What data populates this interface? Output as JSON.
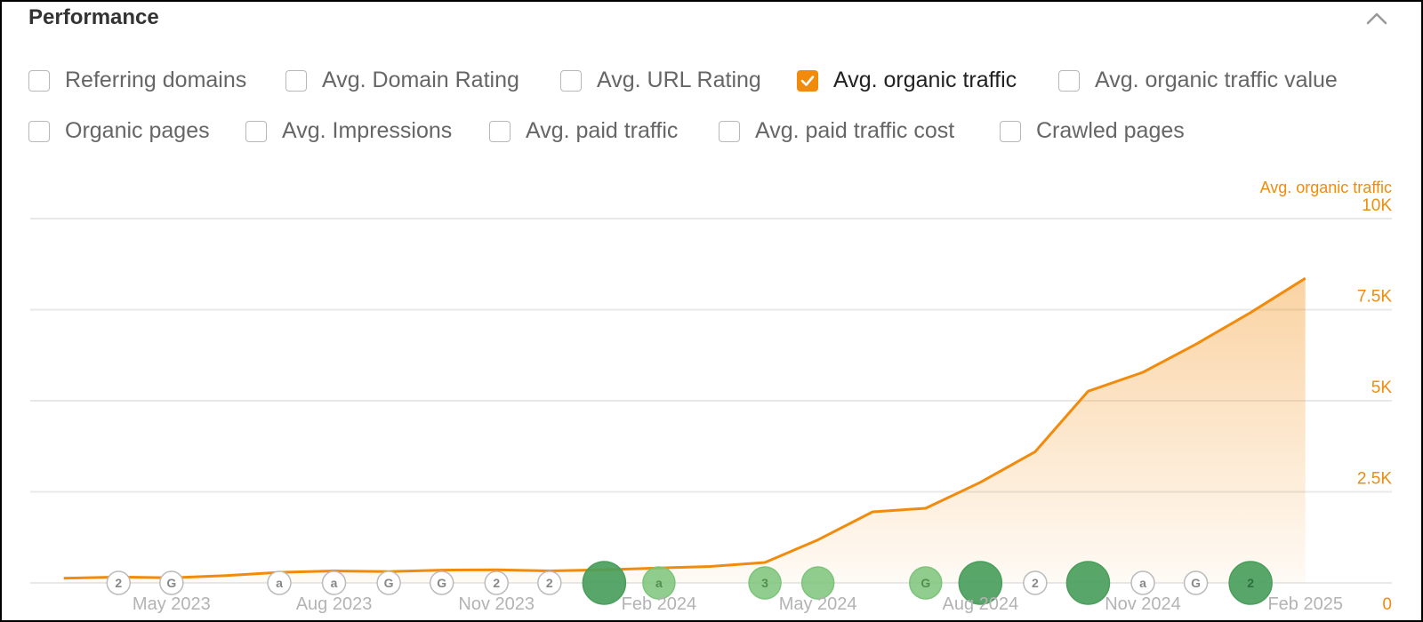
{
  "header": {
    "title": "Performance"
  },
  "metrics_row1": [
    {
      "label": "Referring domains",
      "checked": false
    },
    {
      "label": "Avg. Domain Rating",
      "checked": false
    },
    {
      "label": "Avg. URL Rating",
      "checked": false
    },
    {
      "label": "Avg. organic traffic",
      "checked": true
    },
    {
      "label": "Avg. organic traffic value",
      "checked": false
    }
  ],
  "metrics_row2": [
    {
      "label": "Organic pages",
      "checked": false
    },
    {
      "label": "Avg. Impressions",
      "checked": false
    },
    {
      "label": "Avg. paid traffic",
      "checked": false
    },
    {
      "label": "Avg. paid traffic cost",
      "checked": false
    },
    {
      "label": "Crawled pages",
      "checked": false
    }
  ],
  "colors": {
    "accent": "#f28b0c",
    "annotation_green": "#4a9e5c",
    "annotation_light_green": "#7cc47a",
    "grid": "#e8e8e8"
  },
  "chart_data": {
    "type": "area",
    "ylabel": "Avg. organic traffic",
    "ylim": [
      0,
      10000
    ],
    "yticks": [
      {
        "value": 10000,
        "label": "10K"
      },
      {
        "value": 7500,
        "label": "7.5K"
      },
      {
        "value": 5000,
        "label": "5K"
      },
      {
        "value": 2500,
        "label": "2.5K"
      },
      {
        "value": 0,
        "label": "0"
      }
    ],
    "xlim": [
      "2023-02-10",
      "2025-03-22"
    ],
    "xticks": [
      {
        "date": "2023-05-01",
        "label": "May 2023"
      },
      {
        "date": "2023-08-01",
        "label": "Aug 2023"
      },
      {
        "date": "2023-11-01",
        "label": "Nov 2023"
      },
      {
        "date": "2024-02-01",
        "label": "Feb 2024"
      },
      {
        "date": "2024-05-01",
        "label": "May 2024"
      },
      {
        "date": "2024-08-01",
        "label": "Aug 2024"
      },
      {
        "date": "2024-11-01",
        "label": "Nov 2024"
      },
      {
        "date": "2025-02-01",
        "label": "Feb 2025"
      }
    ],
    "grid": true,
    "series": [
      {
        "color": "#f28b0c",
        "points": [
          {
            "x": "2023-03-01",
            "y": 130
          },
          {
            "x": "2023-04-01",
            "y": 160
          },
          {
            "x": "2023-05-01",
            "y": 140
          },
          {
            "x": "2023-06-01",
            "y": 200
          },
          {
            "x": "2023-07-01",
            "y": 290
          },
          {
            "x": "2023-08-01",
            "y": 330
          },
          {
            "x": "2023-09-01",
            "y": 310
          },
          {
            "x": "2023-10-01",
            "y": 350
          },
          {
            "x": "2023-11-01",
            "y": 360
          },
          {
            "x": "2023-12-01",
            "y": 330
          },
          {
            "x": "2024-01-01",
            "y": 360
          },
          {
            "x": "2024-02-01",
            "y": 410
          },
          {
            "x": "2024-03-01",
            "y": 450
          },
          {
            "x": "2024-04-01",
            "y": 560
          },
          {
            "x": "2024-05-01",
            "y": 1180
          },
          {
            "x": "2024-06-01",
            "y": 1950
          },
          {
            "x": "2024-07-01",
            "y": 2050
          },
          {
            "x": "2024-08-01",
            "y": 2760
          },
          {
            "x": "2024-09-01",
            "y": 3600
          },
          {
            "x": "2024-10-01",
            "y": 5260
          },
          {
            "x": "2024-11-01",
            "y": 5780
          },
          {
            "x": "2024-12-01",
            "y": 6550
          },
          {
            "x": "2025-01-01",
            "y": 7420
          },
          {
            "x": "2025-02-01",
            "y": 8360
          }
        ]
      }
    ],
    "annotations": [
      {
        "date": "2023-04-01",
        "label": "2",
        "kind": "outline",
        "size": "s"
      },
      {
        "date": "2023-05-01",
        "label": "G",
        "kind": "outline",
        "size": "s"
      },
      {
        "date": "2023-07-01",
        "label": "a",
        "kind": "outline",
        "size": "s"
      },
      {
        "date": "2023-08-01",
        "label": "a",
        "kind": "outline",
        "size": "s"
      },
      {
        "date": "2023-09-01",
        "label": "G",
        "kind": "outline",
        "size": "s"
      },
      {
        "date": "2023-10-01",
        "label": "G",
        "kind": "outline",
        "size": "s"
      },
      {
        "date": "2023-11-01",
        "label": "2",
        "kind": "outline",
        "size": "s"
      },
      {
        "date": "2023-12-01",
        "label": "2",
        "kind": "outline",
        "size": "s"
      },
      {
        "date": "2024-01-01",
        "label": "",
        "kind": "dark",
        "size": "l"
      },
      {
        "date": "2024-02-01",
        "label": "a",
        "kind": "light",
        "size": "m"
      },
      {
        "date": "2024-04-01",
        "label": "3",
        "kind": "light",
        "size": "m"
      },
      {
        "date": "2024-05-01",
        "label": "",
        "kind": "light",
        "size": "m"
      },
      {
        "date": "2024-07-01",
        "label": "G",
        "kind": "light",
        "size": "m"
      },
      {
        "date": "2024-08-01",
        "label": "",
        "kind": "dark",
        "size": "l"
      },
      {
        "date": "2024-09-01",
        "label": "2",
        "kind": "outline",
        "size": "s"
      },
      {
        "date": "2024-10-01",
        "label": "",
        "kind": "dark",
        "size": "l"
      },
      {
        "date": "2024-11-01",
        "label": "a",
        "kind": "outline",
        "size": "s"
      },
      {
        "date": "2024-12-01",
        "label": "G",
        "kind": "outline",
        "size": "s"
      },
      {
        "date": "2025-01-01",
        "label": "2",
        "kind": "dark",
        "size": "l"
      }
    ]
  }
}
